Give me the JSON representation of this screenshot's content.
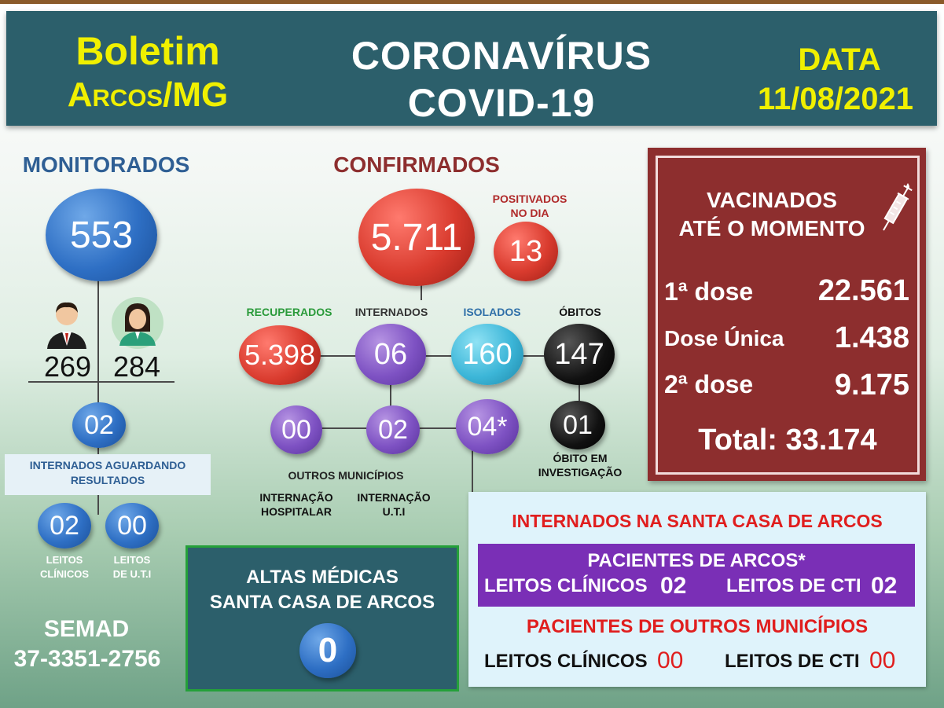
{
  "header": {
    "boletim": "Boletim",
    "cidade": "Arcos/MG",
    "titulo1": "CORONAVÍRUS",
    "titulo2": "COVID-19",
    "data_label": "DATA",
    "data_valor": "11/08/2021"
  },
  "monitorados": {
    "title": "MONITORADOS",
    "total": "553",
    "homens": "269",
    "mulheres": "284",
    "aguardando": "02",
    "aguardando_label": "INTERNADOS AGUARDANDO RESULTADOS",
    "leitos_clinicos": "02",
    "leitos_uti": "00",
    "leitos_clinicos_label1": "LEITOS",
    "leitos_clinicos_label2": "CLÍNICOS",
    "leitos_uti_label1": "LEITOS",
    "leitos_uti_label2": "DE U.T.I",
    "semad": "SEMAD",
    "telefone": "37-3351-2756"
  },
  "confirmados": {
    "title": "CONFIRMADOS",
    "total": "5.711",
    "positivados_label1": "POSITIVADOS",
    "positivados_label2": "NO DIA",
    "positivados": "13",
    "recuperados_label": "RECUPERADOS",
    "recuperados": "5.398",
    "internados_label": "INTERNADOS",
    "internados": "06",
    "isolados_label": "ISOLADOS",
    "isolados": "160",
    "obitos_label": "ÓBITOS",
    "obitos": "147",
    "outros_municipios": "00",
    "internacao_hospitalar": "02",
    "internacao_uti": "04*",
    "obito_investigacao": "01",
    "outros_municipios_label": "OUTROS MUNICÍPIOS",
    "internacao_hospitalar_label1": "INTERNAÇÃO",
    "internacao_hospitalar_label2": "HOSPITALAR",
    "internacao_uti_label1": "INTERNAÇÃO",
    "internacao_uti_label2": "U.T.I",
    "obito_investigacao_label1": "ÓBITO EM",
    "obito_investigacao_label2": "INVESTIGAÇÃO"
  },
  "vacinados": {
    "title1": "VACINADOS",
    "title2": "ATÉ O MOMENTO",
    "dose1_label": "1ª dose",
    "dose1": "22.561",
    "unica_label": "Dose Única",
    "unica": "1.438",
    "dose2_label": "2ª dose",
    "dose2": "9.175",
    "total": "Total: 33.174"
  },
  "altas": {
    "title1": "ALTAS MÉDICAS",
    "title2": "SANTA CASA DE ARCOS",
    "valor": "0"
  },
  "santa_casa": {
    "title": "INTERNADOS NA SANTA CASA DE ARCOS",
    "arcos_title": "PACIENTES DE ARCOS*",
    "arcos_clinicos_label": "LEITOS CLÍNICOS",
    "arcos_clinicos": "02",
    "arcos_cti_label": "LEITOS DE CTI",
    "arcos_cti": "02",
    "outros_title": "PACIENTES DE OUTROS MUNICÍPIOS",
    "outros_clinicos_label": "LEITOS CLÍNICOS",
    "outros_clinicos": "00",
    "outros_cti_label": "LEITOS DE CTI",
    "outros_cti": "00"
  },
  "colors": {
    "header_bg": "#2c5f6b",
    "yellow": "#f0f000",
    "vaccine_bg": "#8d2e2e",
    "red_text": "#e01e1e",
    "purple_bar": "#7a2fb6"
  }
}
